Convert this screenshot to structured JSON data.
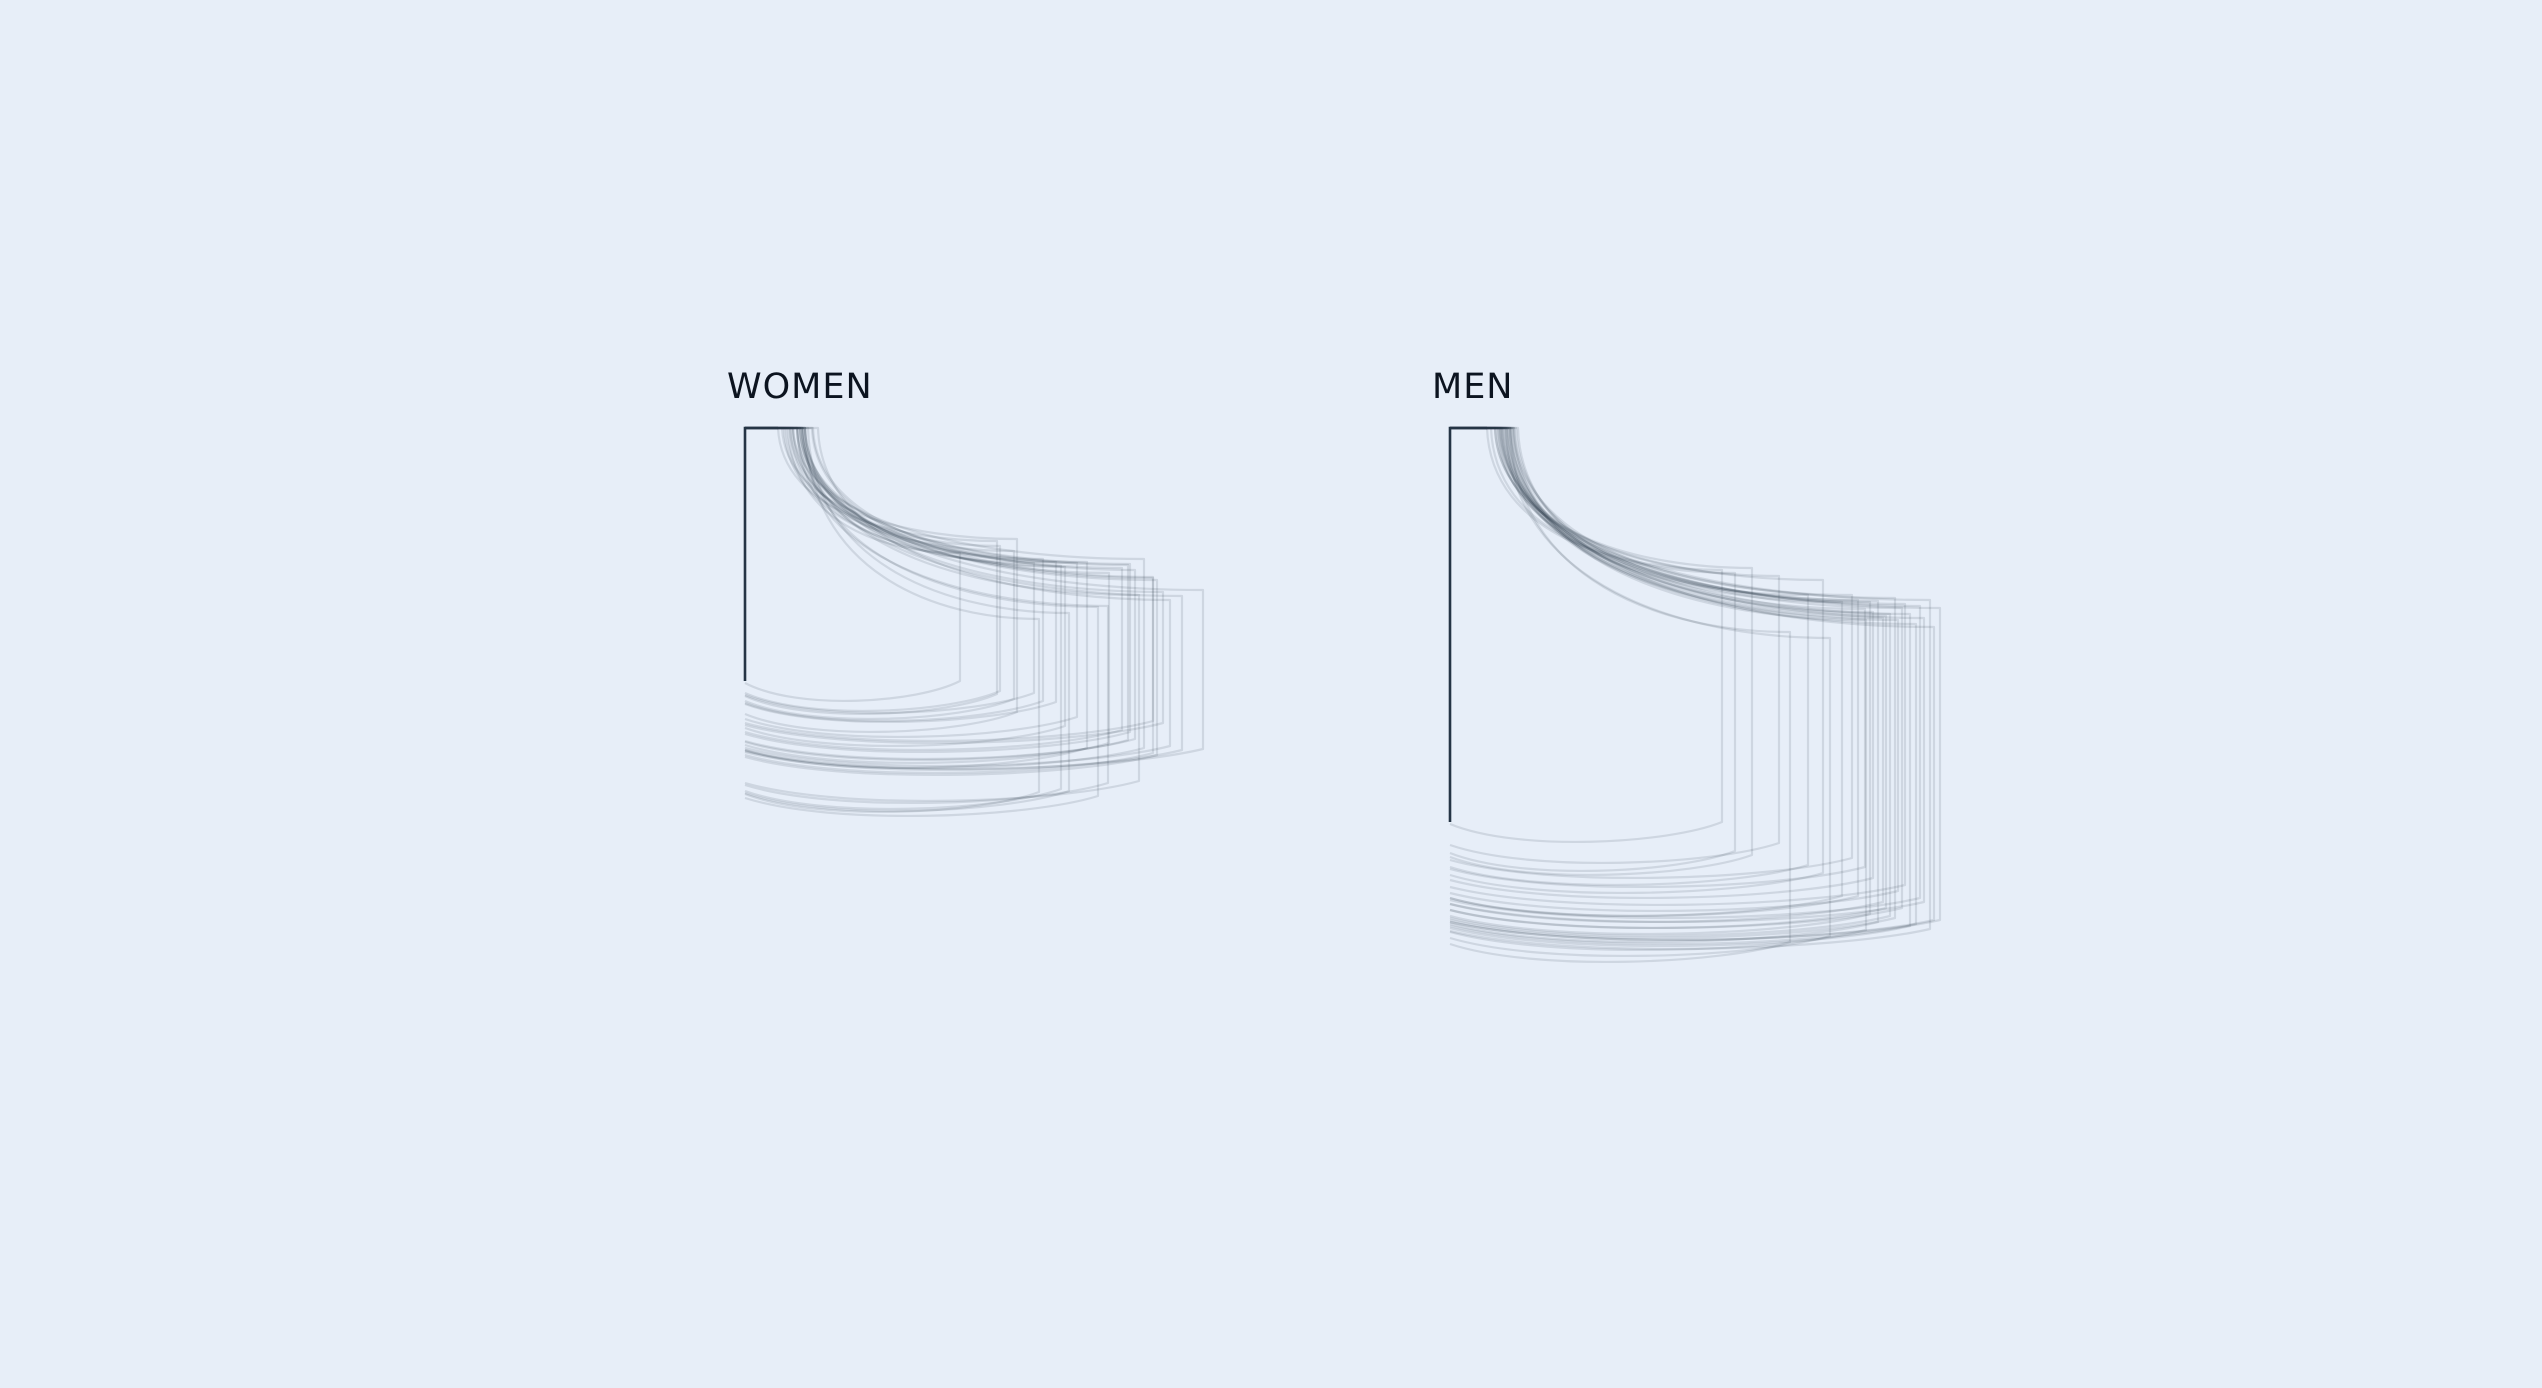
{
  "chart_data": [
    {
      "type": "line",
      "title": "WOMEN",
      "series_color": "#253445",
      "shapes": [
        {
          "top": 43,
          "right": 215,
          "shelf_y": 125,
          "shelf_h": 128
        },
        {
          "top": 33,
          "right": 252,
          "shelf_y": 113,
          "shelf_h": 153
        },
        {
          "top": 47,
          "right": 255,
          "shelf_y": 118,
          "shelf_h": 145
        },
        {
          "top": 41,
          "right": 269,
          "shelf_y": 123,
          "shelf_h": 148
        },
        {
          "top": 37,
          "right": 272,
          "shelf_y": 111,
          "shelf_h": 173
        },
        {
          "top": 45,
          "right": 289,
          "shelf_y": 135,
          "shelf_h": 130
        },
        {
          "top": 48,
          "right": 298,
          "shelf_y": 131,
          "shelf_h": 142
        },
        {
          "top": 60,
          "right": 311,
          "shelf_y": 134,
          "shelf_h": 140
        },
        {
          "top": 52,
          "right": 320,
          "shelf_y": 139,
          "shelf_h": 159
        },
        {
          "top": 39,
          "right": 316,
          "shelf_y": 138,
          "shelf_h": 223
        },
        {
          "top": 55,
          "right": 332,
          "shelf_y": 135,
          "shelf_h": 154
        },
        {
          "top": 45,
          "right": 342,
          "shelf_y": 134,
          "shelf_h": 186
        },
        {
          "top": 57,
          "right": 364,
          "shelf_y": 145,
          "shelf_h": 170
        },
        {
          "top": 53,
          "right": 377,
          "shelf_y": 140,
          "shelf_h": 162
        },
        {
          "top": 55,
          "right": 385,
          "shelf_y": 136,
          "shelf_h": 168
        },
        {
          "top": 58,
          "right": 383,
          "shelf_y": 137,
          "shelf_h": 175
        },
        {
          "top": 68,
          "right": 390,
          "shelf_y": 142,
          "shelf_h": 169
        },
        {
          "top": 67,
          "right": 408,
          "shelf_y": 149,
          "shelf_h": 176
        },
        {
          "top": 48,
          "right": 399,
          "shelf_y": 131,
          "shelf_h": 189
        },
        {
          "top": 57,
          "right": 408,
          "shelf_y": 150,
          "shelf_h": 143
        },
        {
          "top": 60,
          "right": 418,
          "shelf_y": 164,
          "shelf_h": 131
        },
        {
          "top": 60,
          "right": 412,
          "shelf_y": 152,
          "shelf_h": 175
        },
        {
          "top": 55,
          "right": 458,
          "shelf_y": 162,
          "shelf_h": 159
        },
        {
          "top": 73,
          "right": 425,
          "shelf_y": 172,
          "shelf_h": 146
        },
        {
          "top": 52,
          "right": 437,
          "shelf_y": 168,
          "shelf_h": 154
        },
        {
          "top": 57,
          "right": 394,
          "shelf_y": 167,
          "shelf_h": 186
        },
        {
          "top": 52,
          "right": 363,
          "shelf_y": 178,
          "shelf_h": 177
        },
        {
          "top": 58,
          "right": 353,
          "shelf_y": 179,
          "shelf_h": 189
        },
        {
          "top": 63,
          "right": 324,
          "shelf_y": 185,
          "shelf_h": 178
        },
        {
          "top": 60,
          "right": 294,
          "shelf_y": 191,
          "shelf_h": 173
        }
      ]
    },
    {
      "type": "line",
      "title": "MEN",
      "series_color": "#253445",
      "shapes": [
        {
          "top": 41,
          "right": 272,
          "shelf_y": 142,
          "shelf_h": 252
        },
        {
          "top": 37,
          "right": 285,
          "shelf_y": 145,
          "shelf_h": 278
        },
        {
          "top": 50,
          "right": 302,
          "shelf_y": 140,
          "shelf_h": 287
        },
        {
          "top": 54,
          "right": 329,
          "shelf_y": 148,
          "shelf_h": 267
        },
        {
          "top": 52,
          "right": 358,
          "shelf_y": 167,
          "shelf_h": 270
        },
        {
          "top": 45,
          "right": 373,
          "shelf_y": 152,
          "shelf_h": 293
        },
        {
          "top": 57,
          "right": 392,
          "shelf_y": 174,
          "shelf_h": 294
        },
        {
          "top": 64,
          "right": 402,
          "shelf_y": 167,
          "shelf_h": 263
        },
        {
          "top": 48,
          "right": 408,
          "shelf_y": 172,
          "shelf_h": 296
        },
        {
          "top": 60,
          "right": 415,
          "shelf_y": 181,
          "shelf_h": 258
        },
        {
          "top": 53,
          "right": 420,
          "shelf_y": 174,
          "shelf_h": 312
        },
        {
          "top": 58,
          "right": 423,
          "shelf_y": 184,
          "shelf_h": 266
        },
        {
          "top": 47,
          "right": 428,
          "shelf_y": 173,
          "shelf_h": 321
        },
        {
          "top": 61,
          "right": 433,
          "shelf_y": 190,
          "shelf_h": 284
        },
        {
          "top": 56,
          "right": 436,
          "shelf_y": 188,
          "shelf_h": 292
        },
        {
          "top": 62,
          "right": 440,
          "shelf_y": 186,
          "shelf_h": 302
        },
        {
          "top": 49,
          "right": 445,
          "shelf_y": 170,
          "shelf_h": 320
        },
        {
          "top": 55,
          "right": 448,
          "shelf_y": 192,
          "shelf_h": 271
        },
        {
          "top": 63,
          "right": 452,
          "shelf_y": 180,
          "shelf_h": 300
        },
        {
          "top": 51,
          "right": 455,
          "shelf_y": 176,
          "shelf_h": 281
        },
        {
          "top": 66,
          "right": 460,
          "shelf_y": 186,
          "shelf_h": 312
        },
        {
          "top": 58,
          "right": 466,
          "shelf_y": 196,
          "shelf_h": 300
        },
        {
          "top": 60,
          "right": 474,
          "shelf_y": 190,
          "shelf_h": 284
        },
        {
          "top": 45,
          "right": 480,
          "shelf_y": 172,
          "shelf_h": 329
        },
        {
          "top": 68,
          "right": 484,
          "shelf_y": 199,
          "shelf_h": 293
        },
        {
          "top": 52,
          "right": 490,
          "shelf_y": 180,
          "shelf_h": 312
        },
        {
          "top": 64,
          "right": 416,
          "shelf_y": 192,
          "shelf_h": 310
        },
        {
          "top": 56,
          "right": 380,
          "shelf_y": 210,
          "shelf_h": 298
        },
        {
          "top": 60,
          "right": 340,
          "shelf_y": 204,
          "shelf_h": 310
        },
        {
          "top": 50,
          "right": 470,
          "shelf_y": 178,
          "shelf_h": 292
        }
      ]
    }
  ]
}
